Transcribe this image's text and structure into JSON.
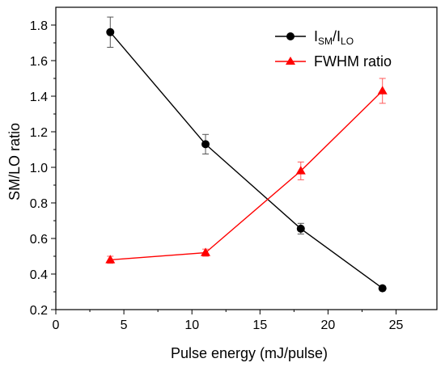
{
  "chart_data": {
    "type": "line",
    "xlabel": "Pulse energy (mJ/pulse)",
    "ylabel": "SM/LO ratio",
    "xlim": [
      0,
      28
    ],
    "ylim": [
      0.2,
      1.9
    ],
    "xticks": [
      0,
      5,
      10,
      15,
      20,
      25
    ],
    "yticks": [
      0.2,
      0.4,
      0.6,
      0.8,
      1.0,
      1.2,
      1.4,
      1.6,
      1.8
    ],
    "ytick_labels": [
      "0.2",
      "0.4",
      "0.6",
      "0.8",
      "1.0",
      "1.2",
      "1.4",
      "1.6",
      "1.8"
    ],
    "grid": false,
    "legend_position": "top-right",
    "series": [
      {
        "name_parts": [
          "I",
          "SM",
          "/I",
          "LO"
        ],
        "marker": "circle",
        "color": "#000000",
        "x": [
          4,
          11,
          18,
          24
        ],
        "y": [
          1.76,
          1.13,
          0.655,
          0.32
        ],
        "yerr": [
          0.085,
          0.055,
          0.03,
          0.0
        ]
      },
      {
        "name": "FWHM ratio",
        "marker": "triangle",
        "color": "#ff0000",
        "x": [
          4,
          11,
          18,
          24
        ],
        "y": [
          0.48,
          0.52,
          0.98,
          1.43
        ],
        "yerr": [
          0.02,
          0.02,
          0.05,
          0.07
        ]
      }
    ]
  }
}
